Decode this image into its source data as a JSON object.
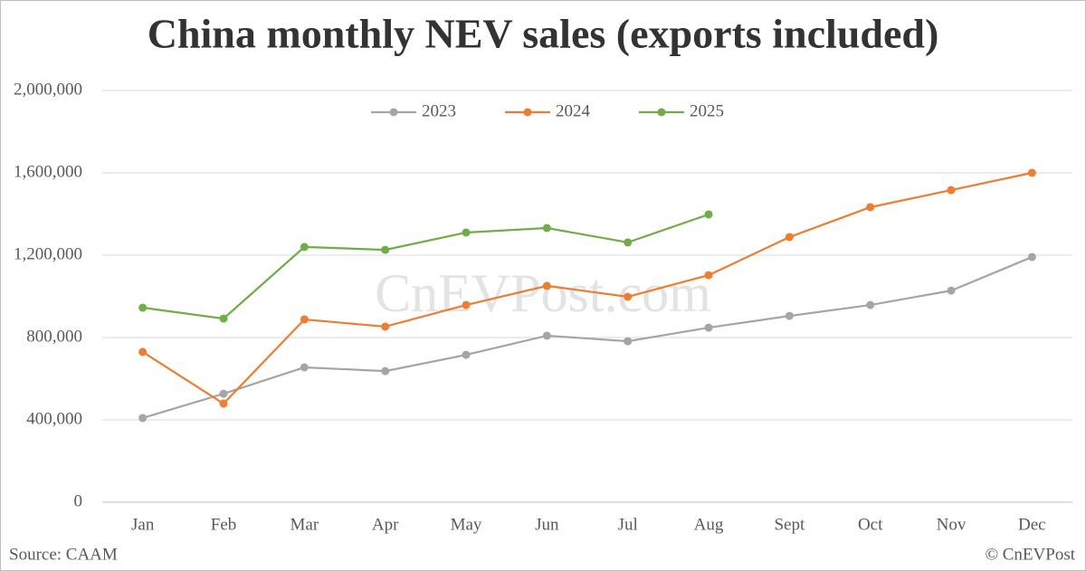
{
  "chart_data": {
    "type": "line",
    "title": "China monthly NEV sales (exports included)",
    "watermark": "CnEVPost.com",
    "source": "Source: CAAM",
    "credit": "© CnEVPost",
    "categories": [
      "Jan",
      "Feb",
      "Mar",
      "Apr",
      "May",
      "Jun",
      "Jul",
      "Aug",
      "Sept",
      "Oct",
      "Nov",
      "Dec"
    ],
    "series": [
      {
        "name": "2023",
        "color": "#a5a5a5",
        "values": [
          409000,
          527000,
          655000,
          637000,
          716000,
          809000,
          782000,
          848000,
          905000,
          958000,
          1028000,
          1191000
        ]
      },
      {
        "name": "2024",
        "color": "#ed7d31",
        "values": [
          730000,
          479000,
          888000,
          853000,
          958000,
          1051000,
          998000,
          1103000,
          1288000,
          1433000,
          1516000,
          1600000
        ]
      },
      {
        "name": "2025",
        "color": "#70ad47",
        "values": [
          945000,
          892000,
          1240000,
          1226000,
          1310000,
          1332000,
          1262000,
          1398000,
          null,
          null,
          null,
          null
        ]
      }
    ],
    "ylim": [
      0,
      2000000
    ],
    "yticks": [
      0,
      {
        "value": 400000,
        "label": "400,000"
      },
      {
        "value": 800000,
        "label": "800,000"
      },
      {
        "value": 1200000,
        "label": "1,200,000"
      },
      {
        "value": 1600000,
        "label": "1,600,000"
      },
      {
        "value": 2000000,
        "label": "2,000,000"
      }
    ],
    "grid": true,
    "legend": "top"
  }
}
